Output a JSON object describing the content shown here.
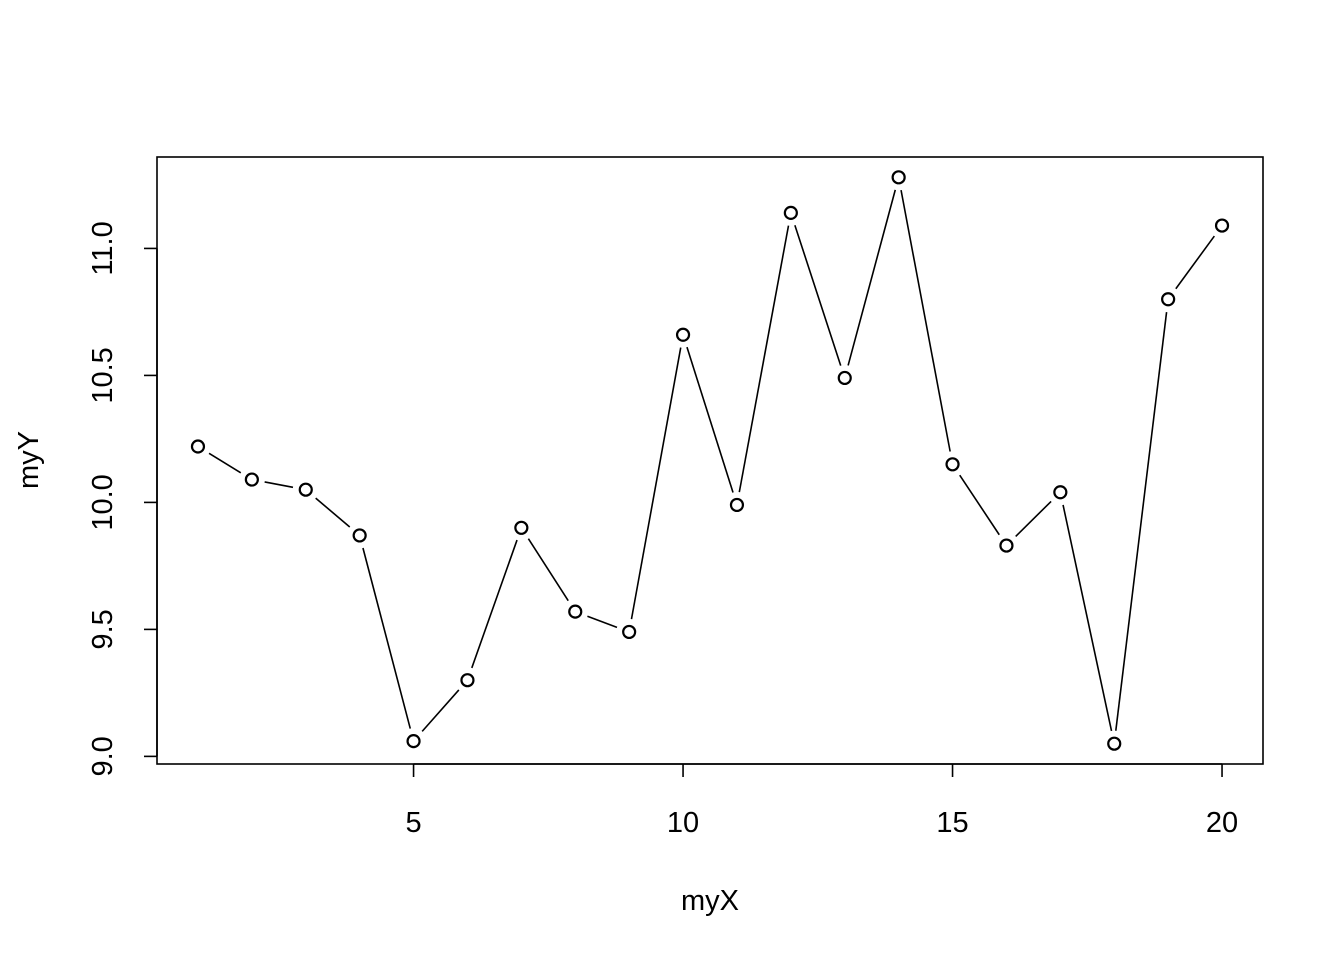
{
  "chart_data": {
    "type": "line",
    "line_style": "b",
    "marker": "open-circle",
    "xlabel": "myX",
    "ylabel": "myY",
    "xlim": [
      0.24,
      20.76
    ],
    "ylim": [
      8.97,
      11.36
    ],
    "xticks": [
      5,
      10,
      15,
      20
    ],
    "yticks": [
      9.0,
      9.5,
      10.0,
      10.5,
      11.0
    ],
    "ytick_labels": [
      "9.0",
      "9.5",
      "10.0",
      "10.5",
      "11.0"
    ],
    "grid": false,
    "legend": "none",
    "x": [
      1,
      2,
      3,
      4,
      5,
      6,
      7,
      8,
      9,
      10,
      11,
      12,
      13,
      14,
      15,
      16,
      17,
      18,
      19,
      20
    ],
    "y": [
      10.22,
      10.09,
      10.05,
      9.87,
      9.06,
      9.3,
      9.9,
      9.57,
      9.49,
      10.66,
      9.99,
      11.14,
      10.49,
      11.28,
      10.15,
      9.83,
      10.04,
      9.05,
      10.8,
      11.09
    ]
  }
}
